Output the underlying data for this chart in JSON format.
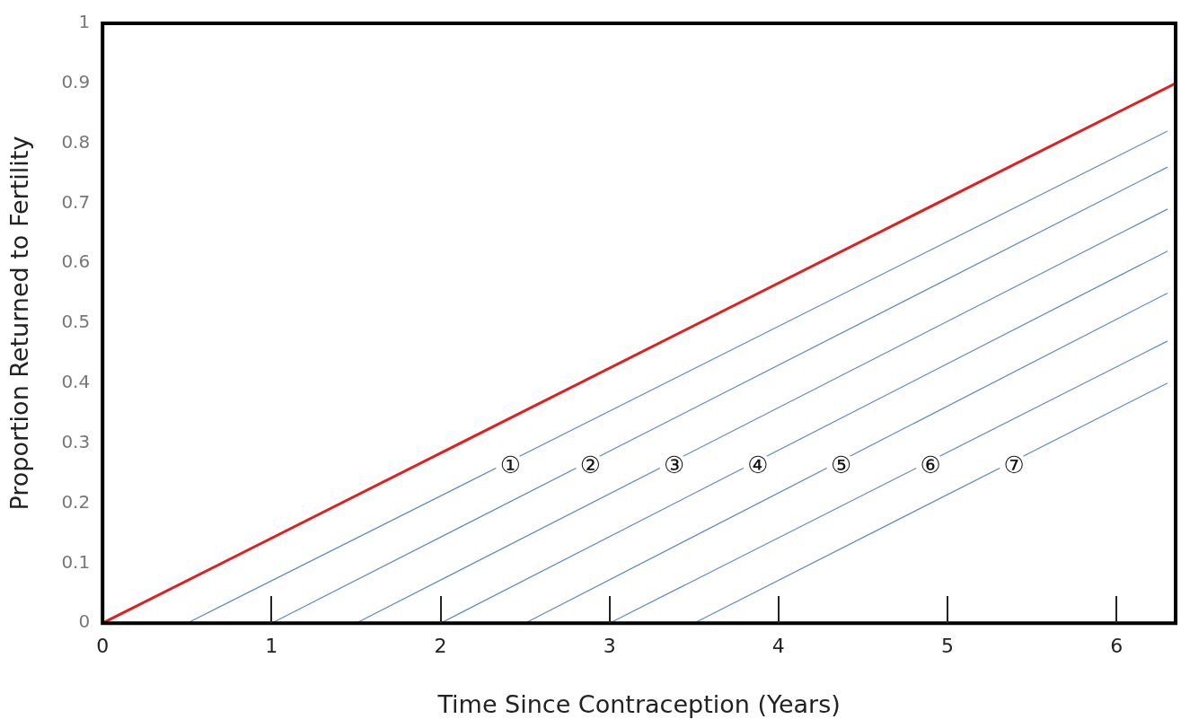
{
  "chart_data": {
    "type": "line",
    "xlabel": "Time Since Contraception (Years)",
    "ylabel": "Proportion Returned to Fertility",
    "xlim": [
      0,
      6.35
    ],
    "xticks": [
      0,
      1,
      2,
      3,
      4,
      5,
      6
    ],
    "ylim": [
      0,
      1
    ],
    "yticks": [
      0,
      0.1,
      0.2,
      0.3,
      0.4,
      0.5,
      0.6,
      0.7,
      0.8,
      0.9,
      1
    ],
    "grid": false,
    "legend": false,
    "marker": "none",
    "line_style": "solid",
    "series": [
      {
        "color": "#e02020",
        "x": [
          0,
          6.35
        ],
        "values": [
          0,
          0.9
        ]
      },
      {
        "color": "#5b8cc4",
        "x": [
          0.5,
          6.3
        ],
        "values": [
          0,
          0.82
        ]
      },
      {
        "color": "#5b8cc4",
        "x": [
          1,
          6.3
        ],
        "values": [
          0,
          0.76
        ]
      },
      {
        "color": "#5b8cc4",
        "x": [
          1.5,
          6.3
        ],
        "values": [
          0,
          0.69
        ]
      },
      {
        "color": "#5b8cc4",
        "x": [
          2,
          6.3
        ],
        "values": [
          0,
          0.62
        ]
      },
      {
        "color": "#5b8cc4",
        "x": [
          2.5,
          6.3
        ],
        "values": [
          0,
          0.55
        ]
      },
      {
        "color": "#5b8cc4",
        "x": [
          3,
          6.3
        ],
        "values": [
          0,
          0.47
        ]
      },
      {
        "color": "#5b8cc4",
        "x": [
          3.5,
          6.3
        ],
        "values": [
          0,
          0.4
        ]
      }
    ],
    "annotations": [
      "①",
      "②",
      "③",
      "④",
      "⑤",
      "⑥",
      "⑦"
    ]
  }
}
